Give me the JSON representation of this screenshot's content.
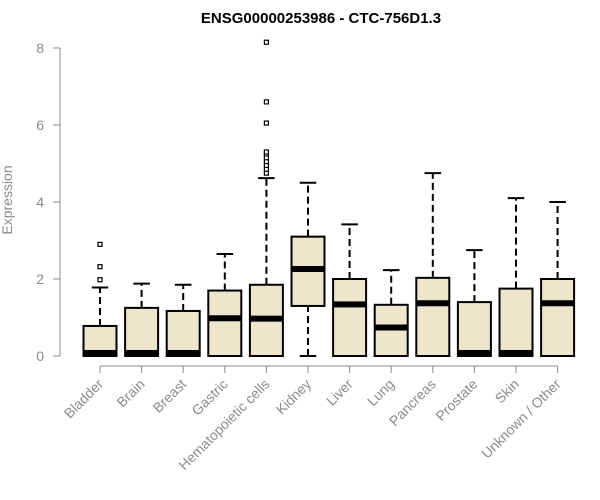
{
  "chart_data": {
    "type": "boxplot",
    "title": "ENSG00000253986 - CTC-756D1.3",
    "xlabel": "",
    "ylabel": "Expression",
    "ylim": [
      0,
      8.2
    ],
    "yticks": [
      0,
      2,
      4,
      6,
      8
    ],
    "grid": false,
    "legend": "none",
    "colors": {
      "box_fill": "#ede6cc",
      "box_stroke": "#000000",
      "axis": "#8c8c8c",
      "median": "#000000"
    },
    "categories": [
      "Bladder",
      "Brain",
      "Breast",
      "Gastric",
      "Hematopoietic cells",
      "Kidney",
      "Liver",
      "Lung",
      "Pancreas",
      "Prostate",
      "Skin",
      "Unknown / Other"
    ],
    "boxes": [
      {
        "category": "Bladder",
        "min": 0,
        "q1": 0,
        "median": 0.02,
        "q3": 0.78,
        "max": 1.78,
        "outliers": [
          1.98,
          2.32,
          2.9
        ]
      },
      {
        "category": "Brain",
        "min": 0,
        "q1": 0,
        "median": 0.02,
        "q3": 1.25,
        "max": 1.88,
        "outliers": []
      },
      {
        "category": "Breast",
        "min": 0,
        "q1": 0,
        "median": 0.02,
        "q3": 1.17,
        "max": 1.85,
        "outliers": []
      },
      {
        "category": "Gastric",
        "min": 0,
        "q1": 0,
        "median": 0.98,
        "q3": 1.7,
        "max": 2.65,
        "outliers": []
      },
      {
        "category": "Hematopoietic cells",
        "min": 0,
        "q1": 0,
        "median": 0.97,
        "q3": 1.85,
        "max": 4.62,
        "outliers": [
          4.75,
          4.85,
          4.95,
          5.05,
          5.15,
          5.25,
          5.3,
          6.05,
          6.6,
          8.15
        ]
      },
      {
        "category": "Kidney",
        "min": 0,
        "q1": 1.3,
        "median": 2.26,
        "q3": 3.1,
        "max": 4.5,
        "outliers": []
      },
      {
        "category": "Liver",
        "min": 0,
        "q1": 0,
        "median": 1.34,
        "q3": 2.0,
        "max": 3.42,
        "outliers": []
      },
      {
        "category": "Lung",
        "min": 0,
        "q1": 0,
        "median": 0.74,
        "q3": 1.33,
        "max": 2.23,
        "outliers": []
      },
      {
        "category": "Pancreas",
        "min": 0,
        "q1": 0,
        "median": 1.37,
        "q3": 2.03,
        "max": 4.75,
        "outliers": []
      },
      {
        "category": "Prostate",
        "min": 0,
        "q1": 0,
        "median": 0.02,
        "q3": 1.4,
        "max": 2.75,
        "outliers": []
      },
      {
        "category": "Skin",
        "min": 0,
        "q1": 0,
        "median": 0.02,
        "q3": 1.75,
        "max": 4.1,
        "outliers": []
      },
      {
        "category": "Unknown / Other",
        "min": 0,
        "q1": 0,
        "median": 1.37,
        "q3": 2.0,
        "max": 4.0,
        "outliers": []
      }
    ]
  }
}
